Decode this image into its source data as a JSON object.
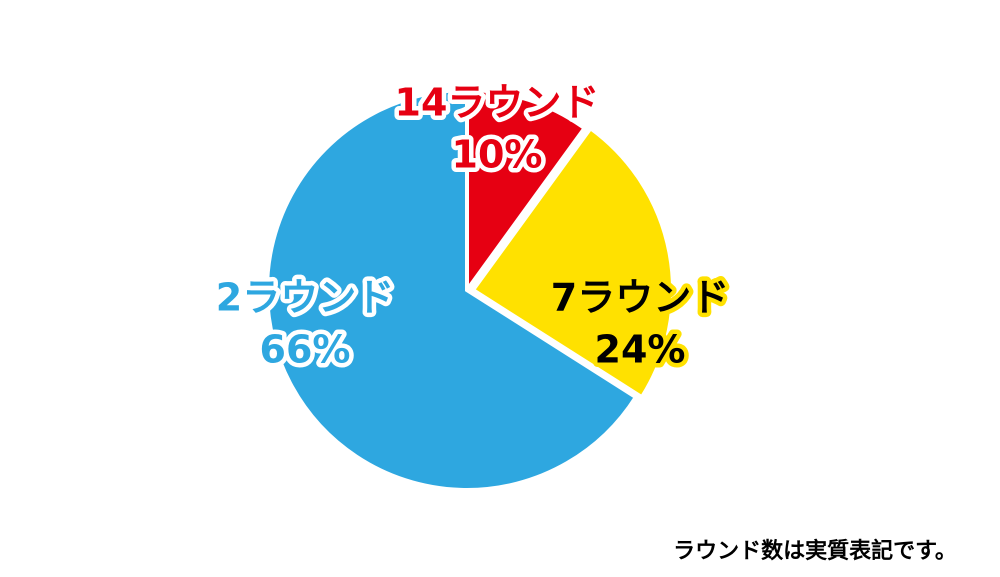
{
  "chart_data": {
    "type": "pie",
    "categories": [
      "14ラウンド",
      "7ラウンド",
      "2ラウンド"
    ],
    "values": [
      10,
      24,
      66
    ],
    "value_labels": [
      "10%",
      "24%",
      "66%"
    ],
    "colors": [
      "#e60012",
      "#ffe100",
      "#2ea7e0"
    ],
    "note": "ラウンド数は実質表記です。"
  }
}
